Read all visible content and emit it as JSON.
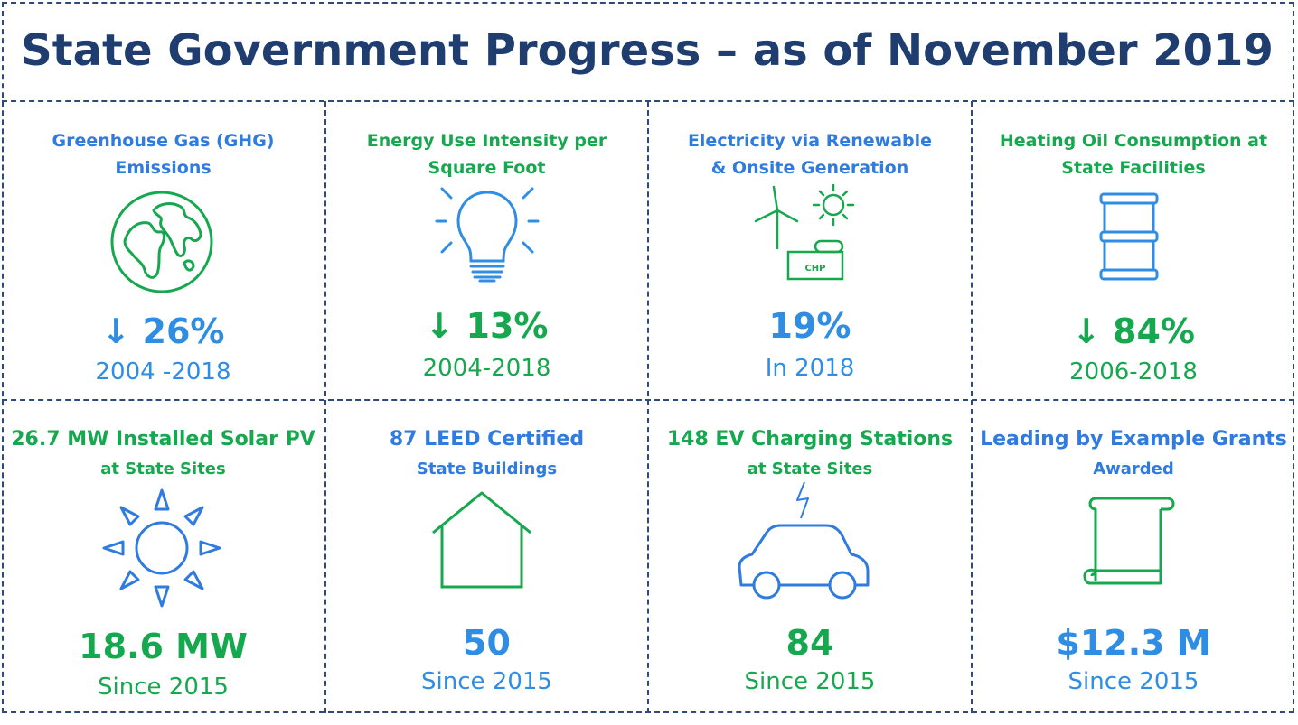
{
  "title": "State Government Progress – as of November 2019",
  "colors": {
    "green": "#16a84f",
    "blue": "#2f8de4",
    "navy": "#1f3d6e"
  },
  "cells": [
    {
      "line1": "Greenhouse Gas (GHG)",
      "line2": "Emissions",
      "icon": "globe-icon",
      "arrow": "↓",
      "value": "26%",
      "sub": "2004 -2018"
    },
    {
      "line1": "Energy Use Intensity per",
      "line2": "Square Foot",
      "icon": "lightbulb-icon",
      "arrow": "↓",
      "value": "13%",
      "sub": "2004-2018"
    },
    {
      "line1": "Electricity via Renewable",
      "line2": "& Onsite Generation",
      "icon": "renewables-icon",
      "icon_text": "CHP",
      "value": "19%",
      "sub": "In 2018"
    },
    {
      "line1": "Heating Oil Consumption  at",
      "line2": "State Facilities",
      "icon": "oil-barrel-icon",
      "arrow": "↓",
      "value": "84%",
      "sub": "2006-2018"
    },
    {
      "line1": "26.7 MW Installed Solar PV",
      "line2": "at State Sites",
      "icon": "sun-icon",
      "value": "18.6 MW",
      "sub": "Since 2015"
    },
    {
      "line1": "87 LEED Certified",
      "line2": "State Buildings",
      "icon": "house-icon",
      "value": "50",
      "sub": "Since 2015"
    },
    {
      "line1": "148 EV Charging Stations",
      "line2": "at State Sites",
      "icon": "electric-car-icon",
      "value": "84",
      "sub": "Since 2015"
    },
    {
      "line1": "Leading by Example Grants",
      "line2": "Awarded",
      "icon": "scroll-icon",
      "value": "$12.3 M",
      "sub": "Since 2015"
    }
  ]
}
